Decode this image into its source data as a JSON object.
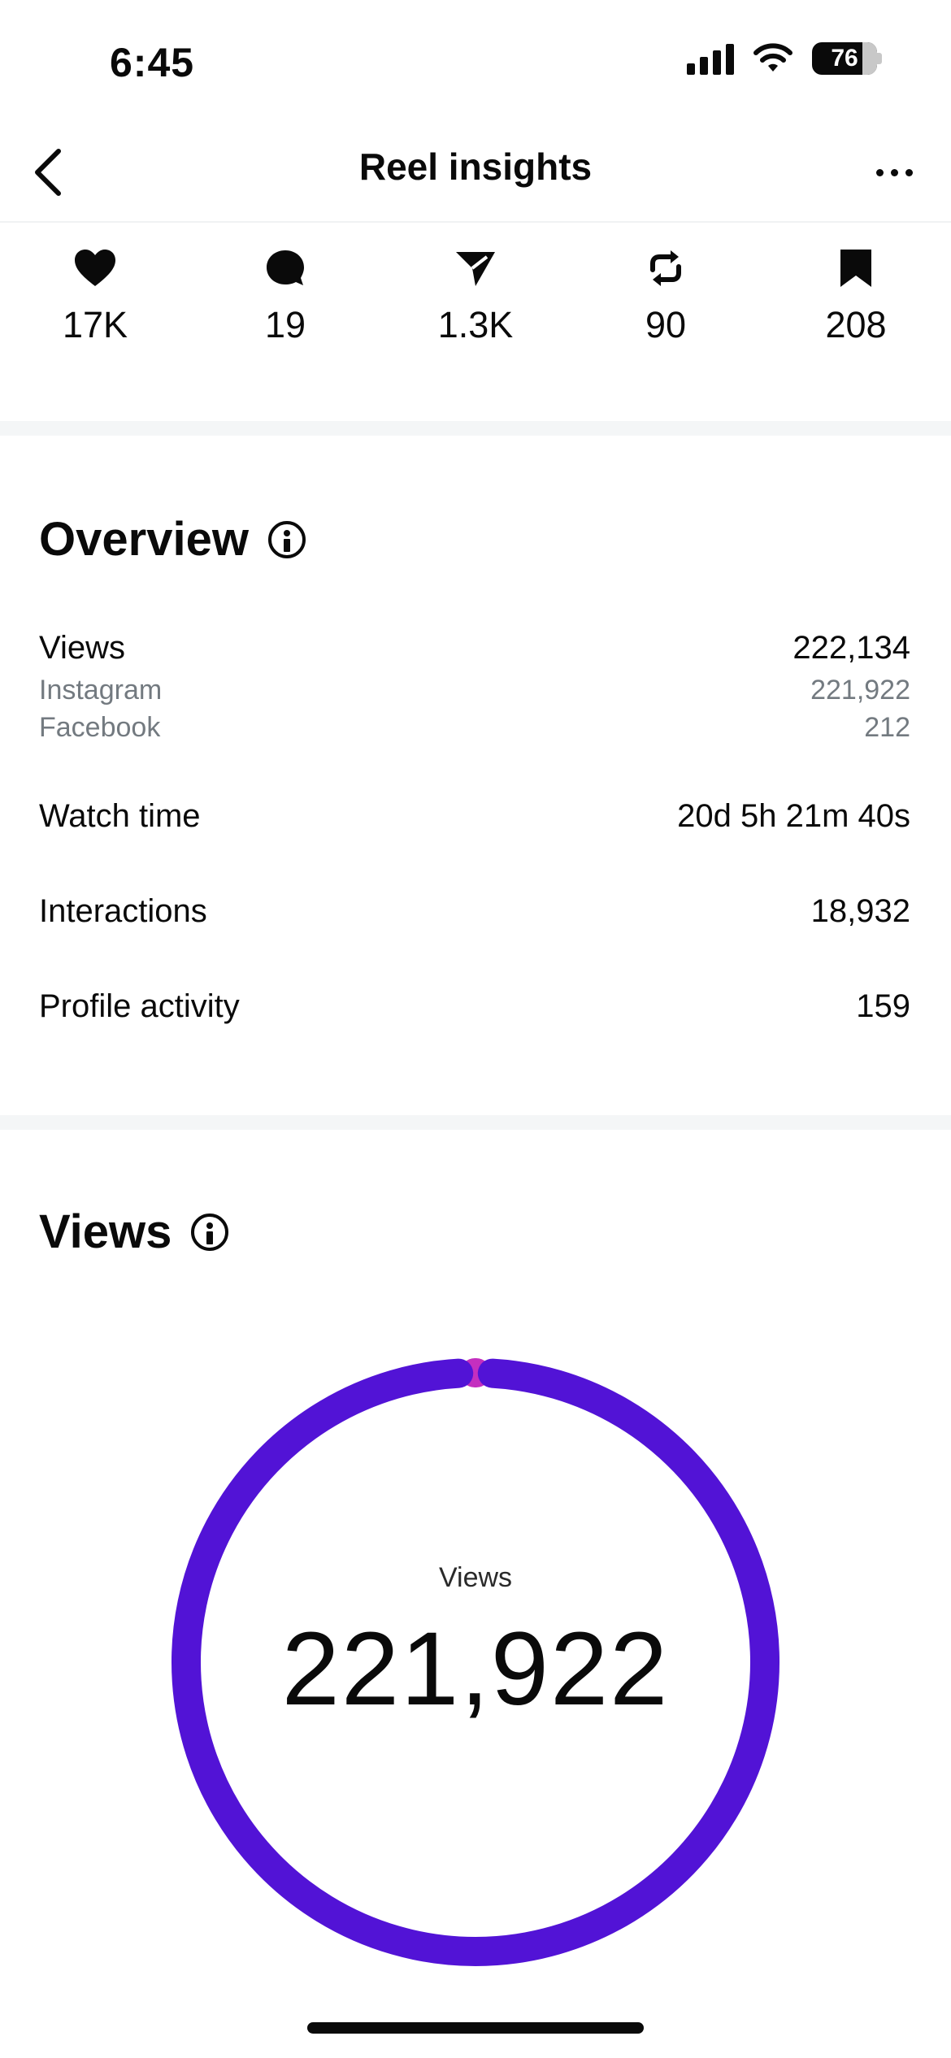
{
  "status_bar": {
    "time": "6:45",
    "battery": "76"
  },
  "header": {
    "title": "Reel insights"
  },
  "stats": [
    {
      "icon": "heart-icon",
      "value": "17K"
    },
    {
      "icon": "comment-icon",
      "value": "19"
    },
    {
      "icon": "send-icon",
      "value": "1.3K"
    },
    {
      "icon": "repost-icon",
      "value": "90"
    },
    {
      "icon": "bookmark-icon",
      "value": "208"
    }
  ],
  "overview": {
    "title": "Overview",
    "views_label": "Views",
    "views_value": "222,134",
    "instagram_label": "Instagram",
    "instagram_value": "221,922",
    "facebook_label": "Facebook",
    "facebook_value": "212",
    "watch_time_label": "Watch time",
    "watch_time_value": "20d 5h 21m 40s",
    "interactions_label": "Interactions",
    "interactions_value": "18,932",
    "profile_activity_label": "Profile activity",
    "profile_activity_value": "159"
  },
  "views_section": {
    "title": "Views",
    "center_label": "Views",
    "center_value": "221,922"
  },
  "chart_data": {
    "type": "pie",
    "series": [
      {
        "name": "Instagram",
        "value": 221922,
        "color": "#5213d6"
      },
      {
        "name": "Facebook",
        "value": 212,
        "color": "#c42fbf"
      }
    ]
  }
}
